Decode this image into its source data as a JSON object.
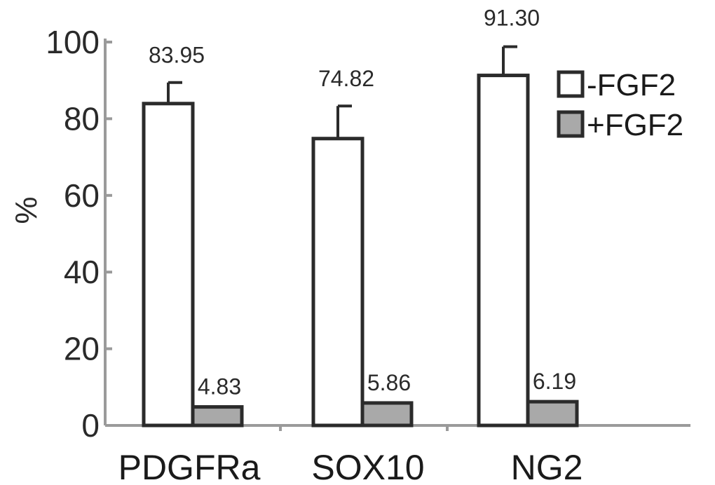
{
  "chart_data": {
    "type": "bar",
    "categories": [
      "PDGFRa",
      "SOX10",
      "NG2"
    ],
    "series": [
      {
        "name": "-FGF2",
        "values": [
          83.95,
          74.82,
          91.3
        ],
        "labels": [
          "83.95",
          "74.82",
          "91.30"
        ],
        "errors": [
          5.5,
          8.5,
          7.5
        ],
        "color": "#ffffff"
      },
      {
        "name": "+FGF2",
        "values": [
          4.83,
          5.86,
          6.19
        ],
        "labels": [
          "4.83",
          "5.86",
          "6.19"
        ],
        "errors": [
          0,
          0,
          0
        ],
        "color": "#a9a9a9"
      }
    ],
    "title": "",
    "xlabel": "",
    "ylabel": "%",
    "ylim": [
      0,
      100
    ],
    "yticks": [
      "0",
      "20",
      "40",
      "60",
      "80",
      "100"
    ],
    "legend_position": "top-right",
    "grid": false,
    "axis_color": "#9a9a9a",
    "bar_stroke_color": "#2b2b2b"
  }
}
